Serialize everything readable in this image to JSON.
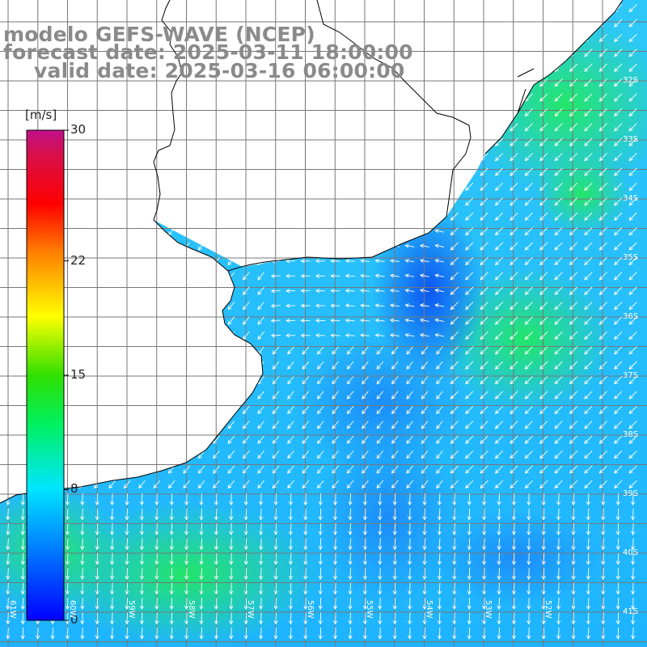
{
  "title": {
    "line1": "modelo GEFS-WAVE (NCEP)",
    "line2": "forecast date: 2025-03-11 18:00:00",
    "line3": "valid date: 2025-03-16 06:00:00"
  },
  "colorbar": {
    "units": "[m/s]",
    "min": 0,
    "max": 30,
    "ticks": [
      {
        "value": 30,
        "label": "30"
      },
      {
        "value": 22,
        "label": "22"
      },
      {
        "value": 15,
        "label": "15"
      },
      {
        "value": 8,
        "label": "8"
      },
      {
        "value": 0,
        "label": "0"
      }
    ],
    "colors": [
      "#0000ff",
      "#0078ff",
      "#00e6ff",
      "#00ff00",
      "#ffff00",
      "#ff8000",
      "#ff0000",
      "#d01070",
      "#c01090"
    ]
  },
  "map": {
    "lat_range": [
      -42,
      -31
    ],
    "lon_range": [
      -62,
      -51.5
    ],
    "lon_labels": [
      "61W",
      "60W",
      "59W",
      "58W",
      "57W",
      "56W",
      "55W",
      "54W",
      "53W",
      "52W"
    ],
    "lat_labels": [
      "32S",
      "33S",
      "34S",
      "35S",
      "36S",
      "37S",
      "38S",
      "39S",
      "40S",
      "41S"
    ],
    "grid": true,
    "land_color": "#ffffff",
    "coastline_color": "#000000",
    "arrow_color": "#ffffff"
  }
}
